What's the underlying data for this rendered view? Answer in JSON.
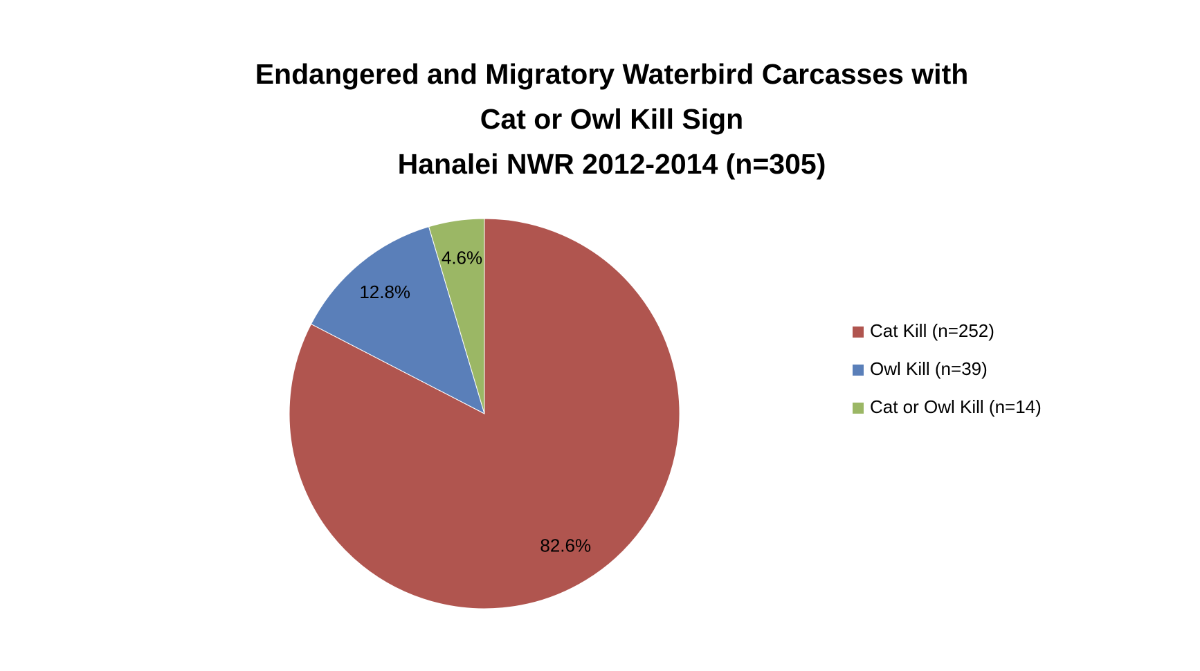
{
  "chart_data": {
    "type": "pie",
    "title": [
      "Endangered and Migratory Waterbird Carcasses with",
      "Cat or Owl Kill Sign",
      "Hanalei NWR 2012-2014 (n=305)"
    ],
    "series": [
      {
        "name": "Cat Kill (n=252)",
        "color": "#b0554f",
        "values": [
          82.6
        ],
        "value_labels": [
          "82.6%"
        ]
      },
      {
        "name": "Owl Kill (n=39)",
        "color": "#5a7fb9",
        "values": [
          12.8
        ],
        "value_labels": [
          "12.8%"
        ]
      },
      {
        "name": "Cat or Owl Kill (n=14)",
        "color": "#9bb765",
        "values": [
          4.6
        ],
        "value_labels": [
          "4.6%"
        ]
      }
    ],
    "legend": "right"
  }
}
